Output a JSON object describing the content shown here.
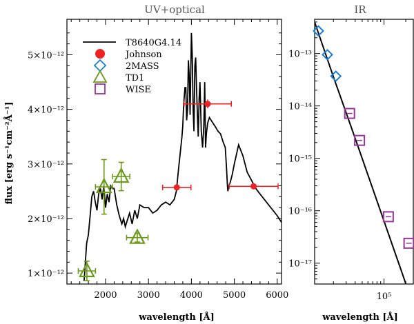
{
  "chart_data": [
    {
      "type": "line",
      "title": "UV+optical",
      "xlabel": "wavelength [Å]",
      "ylabel": "flux [erg s⁻¹cm⁻²Å⁻¹]",
      "xlim": [
        1100,
        6100
      ],
      "ylim": [
        8e-13,
        5.65e-12
      ],
      "y_exponent": -12,
      "xticks": [
        2000,
        3000,
        4000,
        5000,
        6000
      ],
      "yticks": [
        1,
        2,
        3,
        4,
        5
      ],
      "ytick_labels": [
        "1×10⁻¹²",
        "2×10⁻¹²",
        "3×10⁻¹²",
        "4×10⁻¹²",
        "5×10⁻¹²"
      ],
      "legend": [
        {
          "label": "T8640G4.14",
          "marker": "line"
        },
        {
          "label": "Johnson",
          "marker": "filled-circle"
        },
        {
          "label": "2MASS",
          "marker": "diamond"
        },
        {
          "label": "TD1",
          "marker": "triangle"
        },
        {
          "label": "WISE",
          "marker": "square"
        }
      ],
      "series": [
        {
          "name": "T8640G4.14",
          "type": "line",
          "x": [
            1500,
            1530,
            1560,
            1600,
            1640,
            1680,
            1720,
            1760,
            1800,
            1840,
            1880,
            1920,
            1960,
            2000,
            2040,
            2080,
            2120,
            2160,
            2200,
            2260,
            2320,
            2380,
            2420,
            2460,
            2500,
            2560,
            2620,
            2680,
            2740,
            2800,
            2900,
            3000,
            3100,
            3200,
            3300,
            3400,
            3500,
            3600,
            3650,
            3700,
            3740,
            3780,
            3800,
            3820,
            3850,
            3870,
            3890,
            3910,
            3930,
            3950,
            3970,
            4000,
            4020,
            4040,
            4060,
            4080,
            4100,
            4120,
            4140,
            4160,
            4180,
            4200,
            4230,
            4260,
            4290,
            4310,
            4330,
            4350,
            4380,
            4420,
            4460,
            4500,
            4560,
            4620,
            4680,
            4740,
            4790,
            4820,
            4840,
            4850,
            4860,
            4870,
            4900,
            4950,
            5000,
            5100,
            5200,
            5300,
            5400,
            5500,
            5600,
            5700,
            5800,
            5900,
            6000,
            6100
          ],
          "y": [
            0.85,
            1.2,
            1.55,
            1.7,
            2.05,
            2.4,
            2.5,
            2.3,
            2.15,
            2.45,
            2.55,
            2.35,
            2.6,
            2.2,
            2.45,
            2.3,
            2.6,
            2.55,
            2.55,
            2.25,
            2.05,
            1.9,
            2.0,
            1.85,
            1.95,
            2.1,
            1.9,
            2.15,
            2.0,
            2.25,
            2.2,
            2.2,
            2.1,
            2.15,
            2.25,
            2.3,
            2.25,
            2.35,
            2.5,
            2.9,
            3.2,
            3.5,
            3.7,
            4.1,
            4.4,
            4.4,
            3.8,
            4.0,
            4.9,
            4.6,
            3.9,
            5.4,
            5.0,
            4.0,
            3.6,
            4.8,
            4.95,
            4.4,
            3.9,
            3.5,
            4.2,
            4.5,
            3.6,
            3.3,
            3.7,
            4.5,
            3.3,
            3.55,
            3.75,
            3.85,
            3.8,
            3.75,
            3.68,
            3.6,
            3.55,
            3.4,
            3.3,
            2.9,
            2.6,
            2.5,
            2.55,
            2.6,
            2.65,
            2.8,
            3.0,
            3.35,
            3.15,
            2.85,
            2.7,
            2.55,
            2.45,
            2.35,
            2.25,
            2.15,
            2.05,
            1.93
          ]
        },
        {
          "name": "Johnson",
          "type": "scatter",
          "points": [
            {
              "x": 3660,
              "y": 2.57,
              "xerr": 330,
              "yerr": 0
            },
            {
              "x": 4380,
              "y": 4.1,
              "xerr": 550,
              "yerr": 0.08
            },
            {
              "x": 5450,
              "y": 2.59,
              "xerr": 570,
              "yerr": 0
            }
          ]
        },
        {
          "name": "TD1",
          "type": "scatter",
          "points": [
            {
              "x": 1565,
              "y": 1.04,
              "xerr": 200,
              "yerr": 0.18
            },
            {
              "x": 1965,
              "y": 2.58,
              "xerr": 200,
              "yerr": 0.5
            },
            {
              "x": 2365,
              "y": 2.77,
              "xerr": 200,
              "yerr": 0.26
            },
            {
              "x": 2740,
              "y": 1.65,
              "xerr": 250,
              "yerr": 0.08
            }
          ]
        }
      ]
    },
    {
      "type": "line",
      "title": "IR",
      "xlabel": "wavelength [Å]",
      "yscale": "log",
      "xscale": "log",
      "xlim": [
        11000,
        260000
      ],
      "ylim": [
        4e-18,
        4.5e-13
      ],
      "xticks": [
        100000
      ],
      "xtick_labels": [
        "10⁵"
      ],
      "yticks": [
        1e-17,
        1e-16,
        1e-15,
        1e-14,
        1e-13
      ],
      "ytick_labels": [
        "10⁻¹⁷",
        "10⁻¹⁶",
        "10⁻¹⁵",
        "10⁻¹⁴",
        "10⁻¹³"
      ],
      "series": [
        {
          "name": "T8640G4.14",
          "type": "line",
          "x": [
            11000,
            20000,
            40000,
            80000,
            160000,
            260000
          ],
          "y": [
            4e-13,
            3.6e-14,
            2.4e-15,
            1.55e-16,
            9.9e-18,
            1.44e-18
          ]
        },
        {
          "name": "2MASS",
          "type": "scatter",
          "points": [
            {
              "x": 12400,
              "y": 2.7e-13
            },
            {
              "x": 16500,
              "y": 9.5e-14
            },
            {
              "x": 21600,
              "y": 3.7e-14
            }
          ]
        },
        {
          "name": "WISE",
          "type": "scatter",
          "points": [
            {
              "x": 33500,
              "y": 7.2e-15,
              "xerr": 3000
            },
            {
              "x": 46000,
              "y": 2.2e-15,
              "xerr": 4000
            },
            {
              "x": 115000,
              "y": 7.7e-17,
              "xerr": 10000
            },
            {
              "x": 221000,
              "y": 2.4e-17,
              "xerr": 15000
            }
          ]
        }
      ]
    }
  ],
  "colors": {
    "model": "#000000",
    "johnson": "#ee2222",
    "twomass": "#1a7fd4",
    "td1": "#6b9a1a",
    "wise": "#993399",
    "title": "#555555"
  }
}
